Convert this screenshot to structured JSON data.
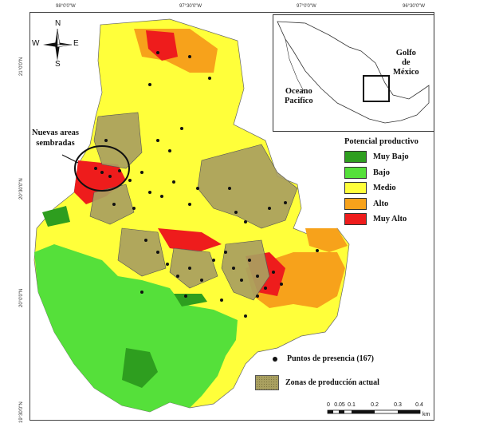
{
  "ticks": {
    "top": [
      "98°0'0\"W",
      "97°30'0\"W",
      "97°0'0\"W",
      "96°30'0\"W"
    ],
    "left": [
      "21°0'0\"N",
      "20°30'0\"N",
      "20°0'0\"N",
      "19°30'0\"N"
    ]
  },
  "compass": {
    "n": "N",
    "s": "S",
    "e": "E",
    "w": "W"
  },
  "annotation": {
    "line1": "Nuevas areas",
    "line2": "sembradas"
  },
  "inset": {
    "ocean_line1": "Oceano",
    "ocean_line2": "Pacifico",
    "gulf_line1": "Golfo",
    "gulf_line2": "de",
    "gulf_line3": "México"
  },
  "legend": {
    "title": "Potencial productivo",
    "items": [
      {
        "label": "Muy Bajo",
        "color": "#2e9e1f"
      },
      {
        "label": "Bajo",
        "color": "#55e03a"
      },
      {
        "label": "Medio",
        "color": "#ffff3a"
      },
      {
        "label": "Alto",
        "color": "#f7a21b"
      },
      {
        "label": "Muy Alto",
        "color": "#ee1c1c"
      }
    ]
  },
  "presence_label": "Puntos de presencia (167)",
  "zonas_label": "Zonas de producción actual",
  "scalebar": {
    "labels": [
      "0",
      "0.05",
      "0.1",
      "0.2",
      "0.3",
      "0.4"
    ],
    "unit": "km"
  }
}
